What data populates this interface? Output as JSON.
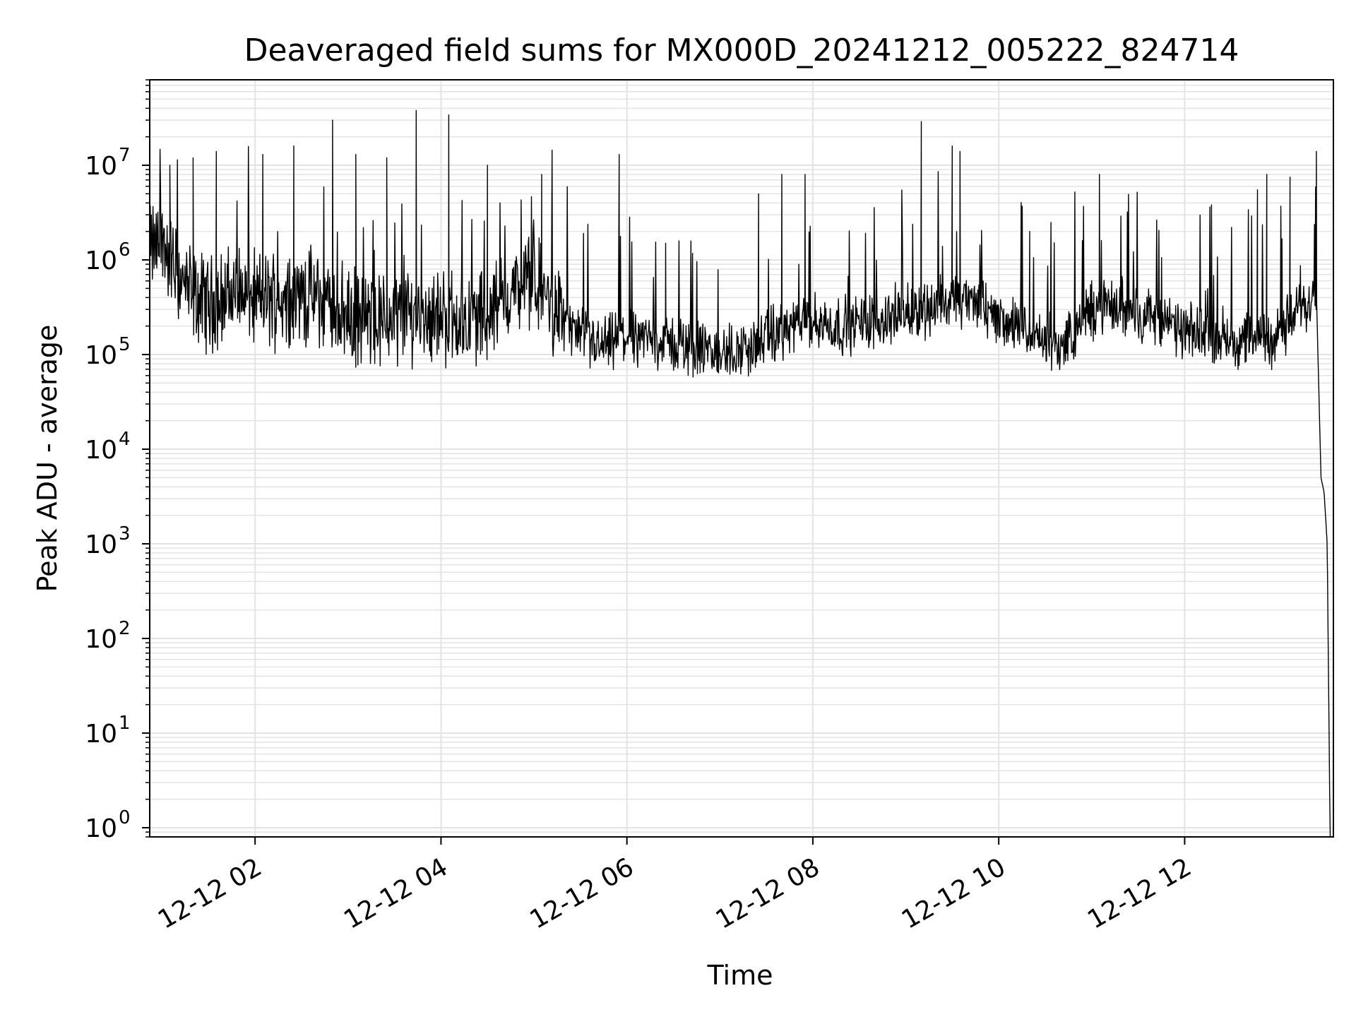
{
  "chart_data": {
    "type": "line",
    "title": "Deaveraged field sums for MX000D_20241212_005222_824714",
    "xlabel": "Time",
    "ylabel": "Peak ADU - average",
    "yscale": "log",
    "ylim": [
      0.8,
      80000000
    ],
    "xlim": [
      "2024-12-12 00:52",
      "2024-12-12 13:36"
    ],
    "grid": true,
    "line_color": "#000000",
    "grid_color": "#e3e3e3",
    "x_ticks": [
      {
        "label": "12-12 02",
        "value": "2024-12-12 02:00"
      },
      {
        "label": "12-12 04",
        "value": "2024-12-12 04:00"
      },
      {
        "label": "12-12 06",
        "value": "2024-12-12 06:00"
      },
      {
        "label": "12-12 08",
        "value": "2024-12-12 08:00"
      },
      {
        "label": "12-12 10",
        "value": "2024-12-12 10:00"
      },
      {
        "label": "12-12 12",
        "value": "2024-12-12 12:00"
      }
    ],
    "y_ticks": [
      {
        "base": "10",
        "exp": "0",
        "value": 1
      },
      {
        "base": "10",
        "exp": "1",
        "value": 10
      },
      {
        "base": "10",
        "exp": "2",
        "value": 100
      },
      {
        "base": "10",
        "exp": "3",
        "value": 1000
      },
      {
        "base": "10",
        "exp": "4",
        "value": 10000
      },
      {
        "base": "10",
        "exp": "5",
        "value": 100000
      },
      {
        "base": "10",
        "exp": "6",
        "value": 1000000
      },
      {
        "base": "10",
        "exp": "7",
        "value": 10000000
      }
    ],
    "series": [
      {
        "x": [
          "2024-12-12 00:52",
          "2024-12-12 01:00",
          "2024-12-12 01:10",
          "2024-12-12 01:20",
          "2024-12-12 01:30",
          "2024-12-12 01:40",
          "2024-12-12 01:50",
          "2024-12-12 02:00",
          "2024-12-12 02:15",
          "2024-12-12 02:30",
          "2024-12-12 02:45",
          "2024-12-12 03:00",
          "2024-12-12 03:15",
          "2024-12-12 03:30",
          "2024-12-12 03:45",
          "2024-12-12 04:00",
          "2024-12-12 04:15",
          "2024-12-12 04:30",
          "2024-12-12 04:45",
          "2024-12-12 05:00",
          "2024-12-12 05:15",
          "2024-12-12 05:30",
          "2024-12-12 05:45",
          "2024-12-12 06:00",
          "2024-12-12 06:20",
          "2024-12-12 06:40",
          "2024-12-12 07:00",
          "2024-12-12 07:20",
          "2024-12-12 07:40",
          "2024-12-12 08:00",
          "2024-12-12 08:20",
          "2024-12-12 08:40",
          "2024-12-12 09:00",
          "2024-12-12 09:20",
          "2024-12-12 09:40",
          "2024-12-12 10:00",
          "2024-12-12 10:20",
          "2024-12-12 10:40",
          "2024-12-12 11:00",
          "2024-12-12 11:20",
          "2024-12-12 11:40",
          "2024-12-12 12:00",
          "2024-12-12 12:20",
          "2024-12-12 12:40",
          "2024-12-12 13:00",
          "2024-12-12 13:15",
          "2024-12-12 13:25",
          "2024-12-12 13:28",
          "2024-12-12 13:30",
          "2024-12-12 13:32",
          "2024-12-12 13:34"
        ],
        "y": [
          1300000,
          1500000,
          700000,
          400000,
          350000,
          400000,
          450000,
          380000,
          400000,
          420000,
          360000,
          250000,
          220000,
          250000,
          280000,
          250000,
          230000,
          260000,
          450000,
          600000,
          300000,
          150000,
          120000,
          160000,
          140000,
          120000,
          100000,
          120000,
          180000,
          220000,
          200000,
          230000,
          280000,
          330000,
          380000,
          250000,
          160000,
          120000,
          300000,
          320000,
          250000,
          170000,
          160000,
          140000,
          160000,
          300000,
          480000,
          5000,
          3500,
          1000,
          0.5
        ],
        "spikes": [
          {
            "x": "2024-12-12 01:05",
            "y": 10000000
          },
          {
            "x": "2024-12-12 01:20",
            "y": 12000000
          },
          {
            "x": "2024-12-12 01:35",
            "y": 14000000
          },
          {
            "x": "2024-12-12 02:05",
            "y": 13000000
          },
          {
            "x": "2024-12-12 02:25",
            "y": 16000000
          },
          {
            "x": "2024-12-12 02:50",
            "y": 30000000
          },
          {
            "x": "2024-12-12 03:05",
            "y": 13000000
          },
          {
            "x": "2024-12-12 03:25",
            "y": 12000000
          },
          {
            "x": "2024-12-12 03:44",
            "y": 38000000
          },
          {
            "x": "2024-12-12 04:05",
            "y": 34000000
          },
          {
            "x": "2024-12-12 04:30",
            "y": 10000000
          },
          {
            "x": "2024-12-12 05:05",
            "y": 8000000
          },
          {
            "x": "2024-12-12 05:55",
            "y": 13000000
          },
          {
            "x": "2024-12-12 06:25",
            "y": 1500000
          },
          {
            "x": "2024-12-12 07:25",
            "y": 5000000
          },
          {
            "x": "2024-12-12 07:40",
            "y": 8000000
          },
          {
            "x": "2024-12-12 07:55",
            "y": 8000000
          },
          {
            "x": "2024-12-12 09:10",
            "y": 29000000
          },
          {
            "x": "2024-12-12 09:30",
            "y": 16000000
          },
          {
            "x": "2024-12-12 09:35",
            "y": 14000000
          },
          {
            "x": "2024-12-12 10:20",
            "y": 2000000
          },
          {
            "x": "2024-12-12 11:05",
            "y": 8000000
          },
          {
            "x": "2024-12-12 12:47",
            "y": 5500000
          },
          {
            "x": "2024-12-12 12:53",
            "y": 8000000
          },
          {
            "x": "2024-12-12 13:08",
            "y": 7500000
          },
          {
            "x": "2024-12-12 13:25",
            "y": 14000000
          }
        ]
      }
    ]
  }
}
